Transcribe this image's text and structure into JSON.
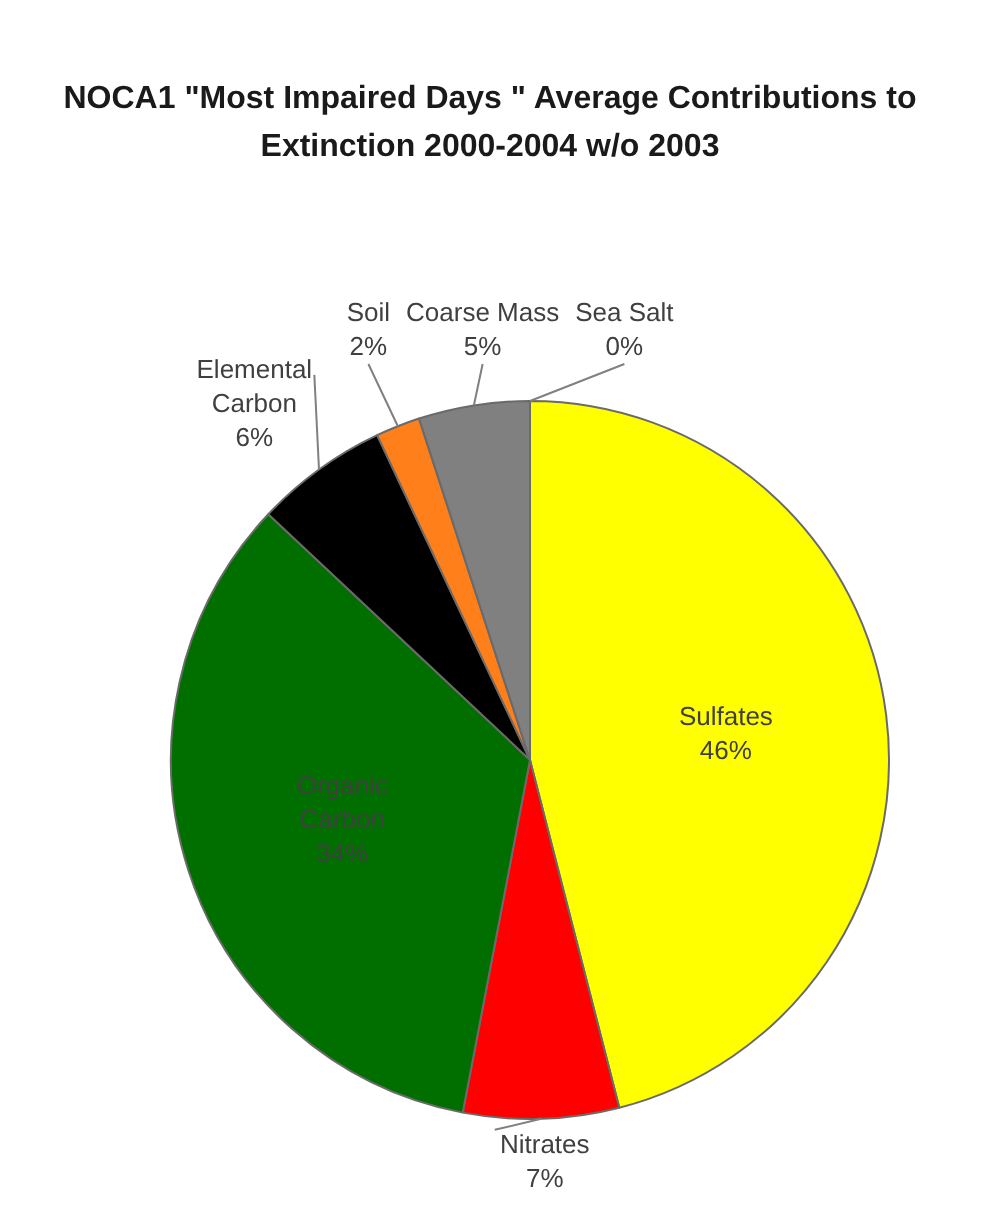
{
  "chart_data": {
    "type": "pie",
    "title": "NOCA1 \"Most Impaired Days \" Average Contributions to Extinction 2000-2004 w/o 2003",
    "categories": [
      "Sulfates",
      "Nitrates",
      "Organic Carbon",
      "Elemental Carbon",
      "Soil",
      "Coarse Mass",
      "Sea Salt"
    ],
    "values": [
      46,
      7,
      34,
      6,
      2,
      5,
      0
    ],
    "colors": [
      "#ffff00",
      "#ff0000",
      "#006f00",
      "#000000",
      "#ff7f1a",
      "#808080",
      "#4f81bd"
    ],
    "value_labels": [
      "46%",
      "7%",
      "34%",
      "6%",
      "2%",
      "5%",
      "0%"
    ],
    "legend": false
  }
}
